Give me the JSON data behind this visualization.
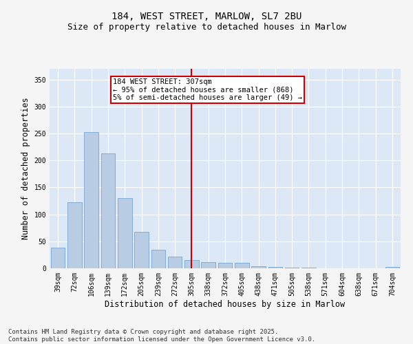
{
  "title": "184, WEST STREET, MARLOW, SL7 2BU",
  "subtitle": "Size of property relative to detached houses in Marlow",
  "xlabel": "Distribution of detached houses by size in Marlow",
  "ylabel": "Number of detached properties",
  "categories": [
    "39sqm",
    "72sqm",
    "106sqm",
    "139sqm",
    "172sqm",
    "205sqm",
    "239sqm",
    "272sqm",
    "305sqm",
    "338sqm",
    "372sqm",
    "405sqm",
    "438sqm",
    "471sqm",
    "505sqm",
    "538sqm",
    "571sqm",
    "604sqm",
    "638sqm",
    "671sqm",
    "704sqm"
  ],
  "values": [
    38,
    122,
    252,
    213,
    130,
    67,
    35,
    22,
    15,
    11,
    10,
    10,
    4,
    2,
    1,
    1,
    0,
    0,
    0,
    0,
    3
  ],
  "bar_color": "#b8cce4",
  "bar_edge_color": "#6699cc",
  "vline_x": 8,
  "vline_color": "#cc0000",
  "annotation_text": "184 WEST STREET: 307sqm\n← 95% of detached houses are smaller (868)\n5% of semi-detached houses are larger (49) →",
  "annotation_box_color": "#cc0000",
  "annotation_text_color": "#000000",
  "ylim": [
    0,
    370
  ],
  "yticks": [
    0,
    50,
    100,
    150,
    200,
    250,
    300,
    350
  ],
  "background_color": "#dce8f5",
  "fig_background_color": "#f5f5f5",
  "grid_color": "#ffffff",
  "footer_text": "Contains HM Land Registry data © Crown copyright and database right 2025.\nContains public sector information licensed under the Open Government Licence v3.0.",
  "title_fontsize": 10,
  "subtitle_fontsize": 9,
  "axis_label_fontsize": 8.5,
  "tick_fontsize": 7,
  "footer_fontsize": 6.5,
  "annotation_fontsize": 7.5
}
